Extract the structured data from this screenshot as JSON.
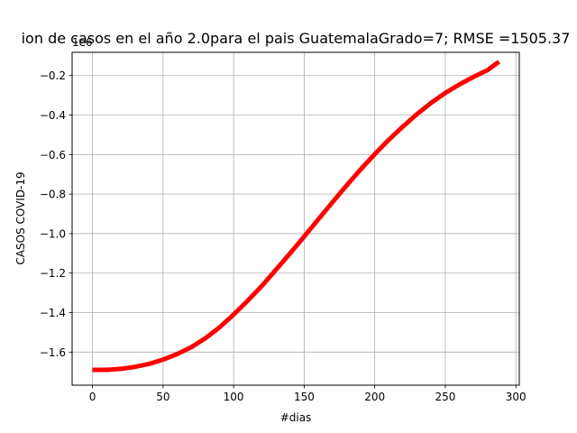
{
  "chart_data": {
    "type": "line",
    "title": "ion de casos  en el año 2.0para el pais GuatemalaGrado=7; RMSE =1505.37",
    "xlabel": "#dias",
    "ylabel": "CASOS COVID-19",
    "y_offset_label": "1e6",
    "x_ticks": [
      0,
      50,
      100,
      150,
      200,
      250,
      300
    ],
    "y_ticks": [
      -1.6,
      -1.4,
      -1.2,
      -1.0,
      -0.8,
      -0.6,
      -0.4,
      -0.2
    ],
    "x_tick_labels": [
      "0",
      "50",
      "100",
      "150",
      "200",
      "250",
      "300"
    ],
    "y_tick_labels": [
      "−1.6",
      "−1.4",
      "−1.2",
      "−1.0",
      "−0.8",
      "−0.6",
      "−0.4",
      "−0.2"
    ],
    "xlim": [
      -14.4,
      302.4
    ],
    "ylim": [
      -1.7675,
      -0.0825
    ],
    "grid": true,
    "line_color": "#ff0000",
    "series": [
      {
        "x": [
          0,
          10,
          20,
          30,
          40,
          50,
          60,
          70,
          80,
          90,
          100,
          110,
          120,
          130,
          140,
          150,
          160,
          170,
          180,
          190,
          200,
          210,
          220,
          230,
          240,
          250,
          260,
          270,
          280,
          288
        ],
        "y": [
          -1.69,
          -1.69,
          -1.685,
          -1.675,
          -1.66,
          -1.638,
          -1.61,
          -1.575,
          -1.53,
          -1.475,
          -1.41,
          -1.34,
          -1.265,
          -1.183,
          -1.1,
          -1.015,
          -0.928,
          -0.842,
          -0.757,
          -0.675,
          -0.598,
          -0.525,
          -0.458,
          -0.395,
          -0.338,
          -0.288,
          -0.245,
          -0.207,
          -0.172,
          -0.13
        ]
      }
    ]
  }
}
